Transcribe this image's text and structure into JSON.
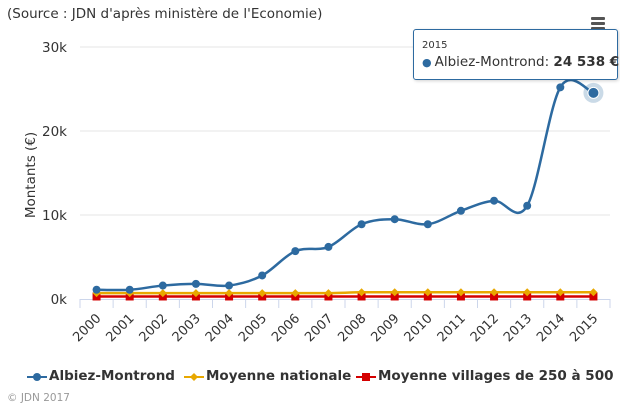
{
  "source": "(Source : JDN d'après ministère de l'Economie)",
  "menu_icon": "hamburger-menu-icon",
  "credits": "© JDN 2017",
  "chart_data": {
    "type": "line",
    "title": "",
    "xlabel": "",
    "ylabel": "Montants (€)",
    "categories": [
      "2000",
      "2001",
      "2002",
      "2003",
      "2004",
      "2005",
      "2006",
      "2007",
      "2008",
      "2009",
      "2010",
      "2011",
      "2012",
      "2013",
      "2014",
      "2015"
    ],
    "ylim": [
      0,
      30000
    ],
    "yticks": [
      0,
      10000,
      20000,
      30000
    ],
    "ytick_labels": [
      "0k",
      "10k",
      "20k",
      "30k"
    ],
    "grid": true,
    "legend_position": "bottom",
    "series": [
      {
        "name": "Albiez-Montrond",
        "color": "#2d6aa0",
        "marker": "circle",
        "values": [
          1100,
          1100,
          1600,
          1800,
          1600,
          2800,
          5700,
          6200,
          8900,
          9500,
          8900,
          10500,
          11700,
          11100,
          25200,
          24538
        ]
      },
      {
        "name": "Moyenne nationale",
        "color": "#e8a800",
        "marker": "diamond",
        "values": [
          700,
          700,
          700,
          700,
          700,
          700,
          700,
          700,
          800,
          800,
          800,
          800,
          800,
          800,
          800,
          800
        ]
      },
      {
        "name": "Moyenne villages de 250 à 500",
        "color": "#d40000",
        "marker": "square",
        "values": [
          300,
          300,
          300,
          300,
          300,
          300,
          300,
          300,
          300,
          300,
          300,
          300,
          300,
          300,
          300,
          300
        ]
      }
    ],
    "tooltip": {
      "header": "2015",
      "series": "Albiez-Montrond",
      "value": "24 538 €"
    }
  }
}
